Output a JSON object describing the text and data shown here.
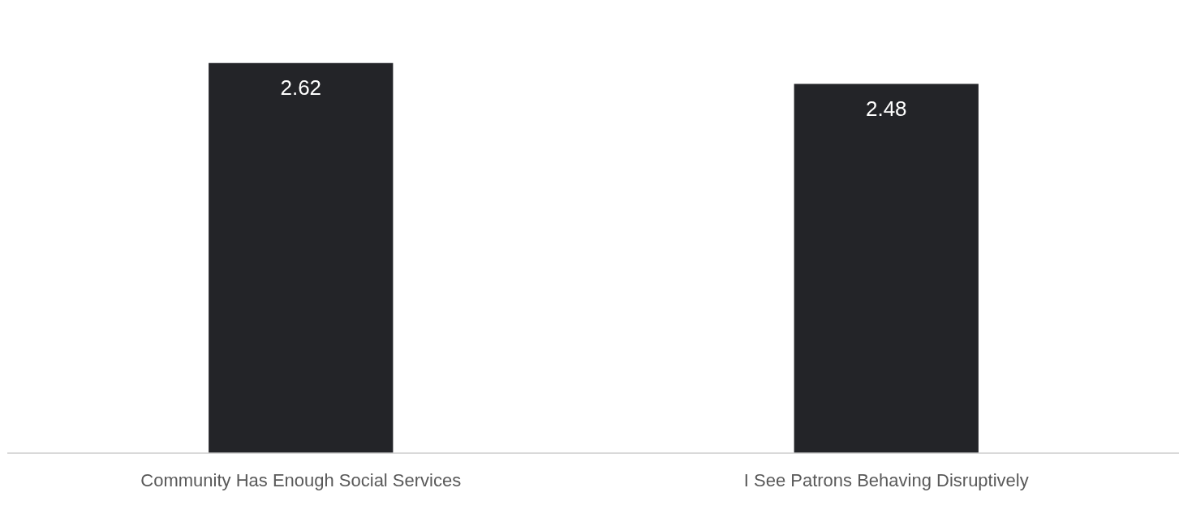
{
  "chart_data": {
    "type": "bar",
    "categories": [
      "Community Has Enough Social Services",
      "I See Patrons Behaving Disruptively"
    ],
    "values": [
      2.62,
      2.48
    ],
    "color": "#232428",
    "data_labels": true
  }
}
